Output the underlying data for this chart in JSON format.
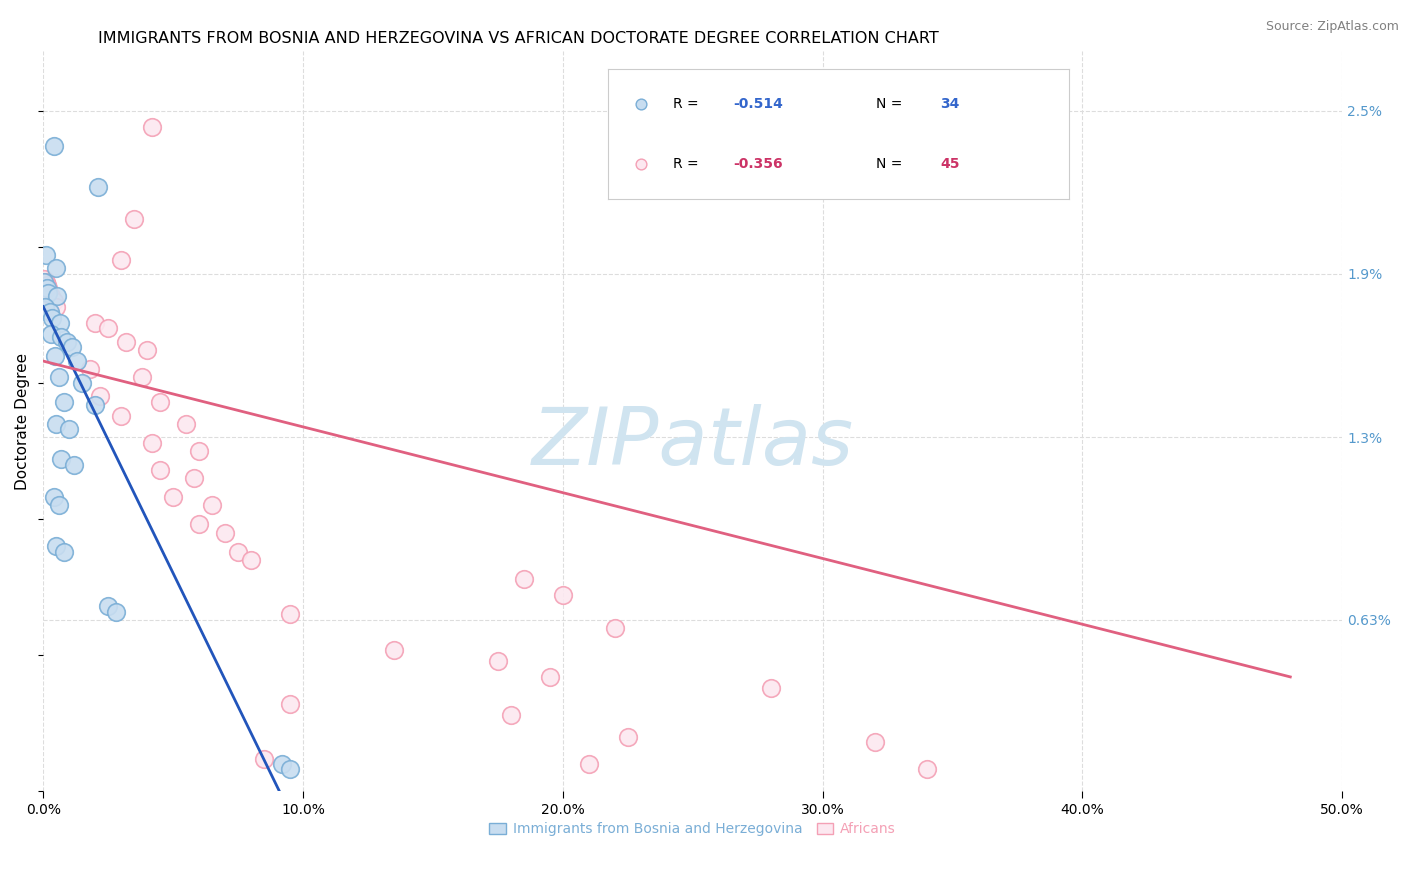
{
  "title": "IMMIGRANTS FROM BOSNIA AND HERZEGOVINA VS AFRICAN DOCTORATE DEGREE CORRELATION CHART",
  "source": "Source: ZipAtlas.com",
  "ylabel": "Doctorate Degree",
  "xlim": [
    0.0,
    50.0
  ],
  "ylim": [
    0.0,
    2.72
  ],
  "yticks_right": [
    0.63,
    1.3,
    1.9,
    2.5
  ],
  "ytick_right_labels": [
    "0.63%",
    "1.3%",
    "1.9%",
    "2.5%"
  ],
  "xtick_labels": [
    "0.0%",
    "10.0%",
    "20.0%",
    "30.0%",
    "40.0%",
    "50.0%"
  ],
  "xtick_vals": [
    0,
    10,
    20,
    30,
    40,
    50
  ],
  "legend_r_blue": "-0.514",
  "legend_n_blue": "34",
  "legend_r_pink": "-0.356",
  "legend_n_pink": "45",
  "blue_fill_color": "#c8ddf0",
  "blue_edge_color": "#7aaed6",
  "pink_fill_color": "#fce8f0",
  "pink_edge_color": "#f4a0b5",
  "blue_line_color": "#2255bb",
  "pink_line_color": "#e06080",
  "blue_scatter": [
    [
      0.4,
      2.37
    ],
    [
      2.1,
      2.22
    ],
    [
      0.1,
      1.97
    ],
    [
      0.5,
      1.92
    ],
    [
      0.05,
      1.87
    ],
    [
      0.15,
      1.85
    ],
    [
      0.2,
      1.83
    ],
    [
      0.55,
      1.82
    ],
    [
      0.08,
      1.78
    ],
    [
      0.25,
      1.76
    ],
    [
      0.35,
      1.74
    ],
    [
      0.65,
      1.72
    ],
    [
      0.3,
      1.68
    ],
    [
      0.7,
      1.67
    ],
    [
      0.9,
      1.65
    ],
    [
      1.1,
      1.63
    ],
    [
      0.45,
      1.6
    ],
    [
      1.3,
      1.58
    ],
    [
      0.6,
      1.52
    ],
    [
      1.5,
      1.5
    ],
    [
      0.8,
      1.43
    ],
    [
      2.0,
      1.42
    ],
    [
      0.5,
      1.35
    ],
    [
      1.0,
      1.33
    ],
    [
      0.7,
      1.22
    ],
    [
      1.2,
      1.2
    ],
    [
      0.4,
      1.08
    ],
    [
      0.6,
      1.05
    ],
    [
      0.5,
      0.9
    ],
    [
      0.8,
      0.88
    ],
    [
      2.5,
      0.68
    ],
    [
      2.8,
      0.66
    ],
    [
      9.2,
      0.1
    ],
    [
      9.5,
      0.08
    ]
  ],
  "pink_scatter": [
    [
      4.2,
      2.44
    ],
    [
      3.5,
      2.1
    ],
    [
      3.0,
      1.95
    ],
    [
      0.05,
      1.88
    ],
    [
      0.1,
      1.87
    ],
    [
      0.15,
      1.86
    ],
    [
      0.2,
      1.85
    ],
    [
      0.3,
      1.82
    ],
    [
      0.4,
      1.8
    ],
    [
      0.5,
      1.78
    ],
    [
      2.0,
      1.72
    ],
    [
      2.5,
      1.7
    ],
    [
      3.2,
      1.65
    ],
    [
      4.0,
      1.62
    ],
    [
      1.8,
      1.55
    ],
    [
      3.8,
      1.52
    ],
    [
      2.2,
      1.45
    ],
    [
      4.5,
      1.43
    ],
    [
      3.0,
      1.38
    ],
    [
      5.5,
      1.35
    ],
    [
      4.2,
      1.28
    ],
    [
      6.0,
      1.25
    ],
    [
      4.5,
      1.18
    ],
    [
      5.8,
      1.15
    ],
    [
      5.0,
      1.08
    ],
    [
      6.5,
      1.05
    ],
    [
      6.0,
      0.98
    ],
    [
      7.0,
      0.95
    ],
    [
      7.5,
      0.88
    ],
    [
      8.0,
      0.85
    ],
    [
      18.5,
      0.78
    ],
    [
      20.0,
      0.72
    ],
    [
      9.5,
      0.65
    ],
    [
      22.0,
      0.6
    ],
    [
      13.5,
      0.52
    ],
    [
      17.5,
      0.48
    ],
    [
      19.5,
      0.42
    ],
    [
      28.0,
      0.38
    ],
    [
      9.5,
      0.32
    ],
    [
      18.0,
      0.28
    ],
    [
      22.5,
      0.2
    ],
    [
      32.0,
      0.18
    ],
    [
      8.5,
      0.12
    ],
    [
      21.0,
      0.1
    ],
    [
      34.0,
      0.08
    ]
  ],
  "blue_line_x": [
    0.0,
    9.5
  ],
  "blue_line_y": [
    1.78,
    -0.08
  ],
  "pink_line_x": [
    0.0,
    48.0
  ],
  "pink_line_y": [
    1.58,
    0.42
  ],
  "background_color": "#ffffff",
  "grid_color": "#dddddd",
  "watermark": "ZIPatlas",
  "watermark_color": "#d0e4f0",
  "title_fontsize": 11.5,
  "axis_label_fontsize": 11,
  "tick_fontsize": 10,
  "right_tick_color": "#5599cc"
}
